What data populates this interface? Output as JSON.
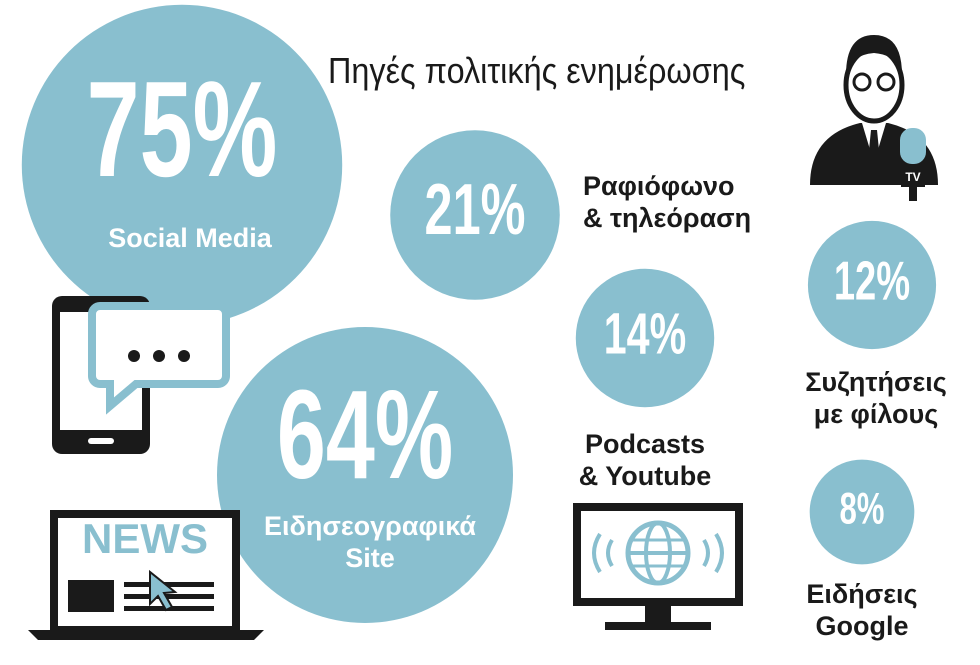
{
  "chart_data": {
    "type": "bubble",
    "title": "Πηγές πολιτικής ενημέρωσης",
    "categories": [
      "Social Media",
      "Ειδησεογραφικά\nSite",
      "Ραφιόφωνο\n& τηλεόραση",
      "Podcasts\n& Youtube",
      "Συζητήσεις\nμε φίλους",
      "Ειδήσεις\nGoogle"
    ],
    "values": [
      75,
      64,
      21,
      14,
      12,
      8
    ],
    "value_labels": [
      "75%",
      "64%",
      "21%",
      "14%",
      "12%",
      "8%"
    ],
    "color": "#89bfcf"
  }
}
